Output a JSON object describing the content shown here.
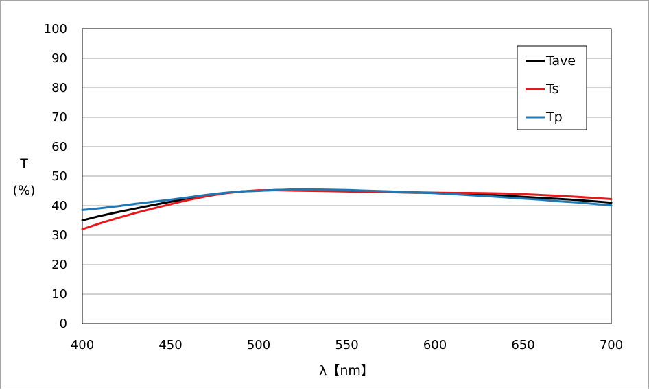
{
  "chart_data": {
    "type": "line",
    "title": "",
    "xlabel": "λ【nm】",
    "ylabel_line1": "T",
    "ylabel_line2": "(%)",
    "xlim": [
      400,
      700
    ],
    "ylim": [
      0,
      100
    ],
    "xticks": [
      400,
      450,
      500,
      550,
      600,
      650,
      700
    ],
    "yticks": [
      0,
      10,
      20,
      30,
      40,
      50,
      60,
      70,
      80,
      90,
      100
    ],
    "grid": "horizontal",
    "legend_position": "top-right",
    "x": [
      400,
      410,
      420,
      430,
      440,
      450,
      460,
      470,
      480,
      490,
      500,
      510,
      520,
      530,
      540,
      550,
      560,
      570,
      580,
      590,
      600,
      610,
      620,
      630,
      640,
      650,
      660,
      670,
      680,
      690,
      700
    ],
    "series": [
      {
        "name": "Tave",
        "color": "#000000",
        "values": [
          35.0,
          36.5,
          37.8,
          39.0,
          40.2,
          41.3,
          42.4,
          43.4,
          44.2,
          44.8,
          45.1,
          45.3,
          45.4,
          45.3,
          45.2,
          45.0,
          44.8,
          44.6,
          44.5,
          44.4,
          44.3,
          44.1,
          43.9,
          43.6,
          43.3,
          43.0,
          42.6,
          42.3,
          41.9,
          41.5,
          41.0
        ]
      },
      {
        "name": "Ts",
        "color": "#e31a1c",
        "values": [
          32.0,
          34.0,
          35.8,
          37.5,
          39.0,
          40.5,
          41.9,
          43.1,
          44.1,
          44.8,
          45.2,
          45.2,
          45.1,
          45.0,
          44.9,
          44.8,
          44.7,
          44.6,
          44.5,
          44.5,
          44.4,
          44.3,
          44.3,
          44.2,
          44.1,
          43.9,
          43.6,
          43.3,
          43.0,
          42.6,
          42.2
        ]
      },
      {
        "name": "Tp",
        "color": "#1f77b4",
        "values": [
          38.5,
          39.1,
          39.8,
          40.6,
          41.3,
          42.0,
          42.8,
          43.6,
          44.3,
          44.8,
          45.0,
          45.3,
          45.5,
          45.5,
          45.4,
          45.3,
          45.1,
          44.9,
          44.7,
          44.5,
          44.2,
          43.9,
          43.5,
          43.2,
          42.8,
          42.4,
          42.0,
          41.5,
          41.1,
          40.6,
          40.1
        ]
      }
    ]
  }
}
